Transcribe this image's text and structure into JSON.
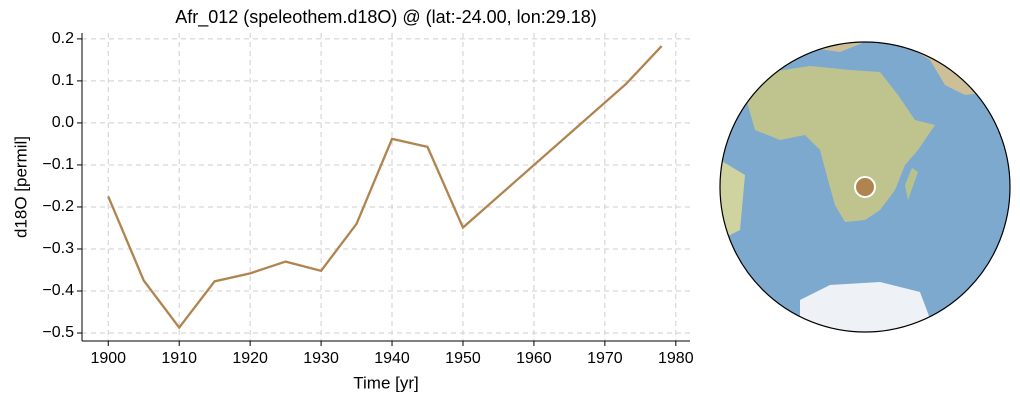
{
  "chart_data": {
    "type": "line",
    "title": "Afr_012 (speleothem.d18O) @ (lat:-24.00, lon:29.18)",
    "x_label": "Time [yr]",
    "y_label": "d18O [permil]",
    "series": [
      {
        "name": "Afr_012",
        "color": "#b0844f",
        "x": [
          1900,
          1905,
          1910,
          1915,
          1920,
          1925,
          1930,
          1935,
          1940,
          1945,
          1950,
          1973,
          1978
        ],
        "values": [
          -0.175,
          -0.375,
          -0.487,
          -0.377,
          -0.358,
          -0.33,
          -0.352,
          -0.24,
          -0.038,
          -0.057,
          -0.249,
          0.093,
          0.183
        ]
      }
    ],
    "xlim": [
      1896.3,
      1982
    ],
    "xticks": [
      1900,
      1910,
      1920,
      1930,
      1940,
      1950,
      1960,
      1970,
      1980
    ],
    "ylim": [
      -0.519,
      0.214
    ],
    "yticks": [
      {
        "value": -0.5,
        "label": "−0.5"
      },
      {
        "value": -0.4,
        "label": "−0.4"
      },
      {
        "value": -0.3,
        "label": "−0.3"
      },
      {
        "value": -0.2,
        "label": "−0.2"
      },
      {
        "value": -0.1,
        "label": "−0.1"
      },
      {
        "value": 0,
        "label": "0.0"
      },
      0.1,
      0.2
    ],
    "grid": true
  }
}
